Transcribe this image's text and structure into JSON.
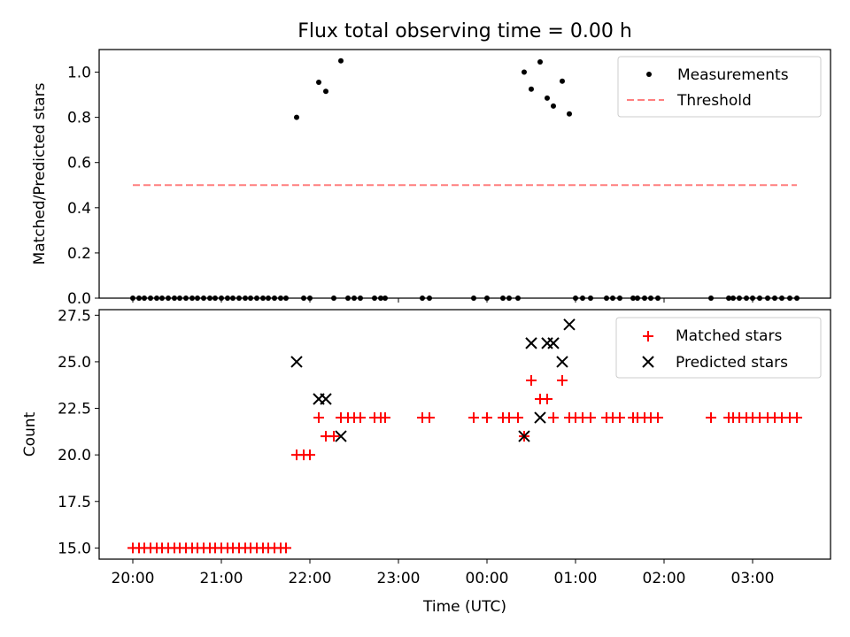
{
  "figure": {
    "title": "Flux total observing time = 0.00 h"
  },
  "colors": {
    "measurements": "#000000",
    "threshold": "#ff7f7f",
    "matched": "#ff0000",
    "predicted": "#000000"
  },
  "chart_data": [
    {
      "type": "scatter",
      "ylabel": "Matched/Predicted stars",
      "xlabel": "",
      "xlim": [
        -0.38,
        7.88
      ],
      "ylim": [
        0.0,
        1.1
      ],
      "yticks": [
        "0.0",
        "0.2",
        "0.4",
        "0.6",
        "0.8",
        "1.0"
      ],
      "yticks_values": [
        0.0,
        0.2,
        0.4,
        0.6,
        0.8,
        1.0
      ],
      "grid": false,
      "legend_position": "top-right",
      "series": [
        {
          "name": "Measurements",
          "kind": "points",
          "points": [
            [
              0.0,
              0
            ],
            [
              0.07,
              0
            ],
            [
              0.13,
              0
            ],
            [
              0.2,
              0
            ],
            [
              0.27,
              0
            ],
            [
              0.33,
              0
            ],
            [
              0.4,
              0
            ],
            [
              0.47,
              0
            ],
            [
              0.53,
              0
            ],
            [
              0.6,
              0
            ],
            [
              0.67,
              0
            ],
            [
              0.73,
              0
            ],
            [
              0.8,
              0
            ],
            [
              0.87,
              0
            ],
            [
              0.93,
              0
            ],
            [
              1.0,
              0
            ],
            [
              1.07,
              0
            ],
            [
              1.13,
              0
            ],
            [
              1.2,
              0
            ],
            [
              1.27,
              0
            ],
            [
              1.33,
              0
            ],
            [
              1.4,
              0
            ],
            [
              1.47,
              0
            ],
            [
              1.53,
              0
            ],
            [
              1.6,
              0
            ],
            [
              1.67,
              0
            ],
            [
              1.73,
              0
            ],
            [
              1.85,
              0.8
            ],
            [
              1.93,
              0
            ],
            [
              2.0,
              0
            ],
            [
              2.1,
              0.955
            ],
            [
              2.18,
              0.915
            ],
            [
              2.27,
              0
            ],
            [
              2.35,
              1.05
            ],
            [
              2.43,
              0
            ],
            [
              2.5,
              0
            ],
            [
              2.57,
              0
            ],
            [
              2.73,
              0
            ],
            [
              2.8,
              0
            ],
            [
              2.85,
              0
            ],
            [
              3.27,
              0
            ],
            [
              3.35,
              0
            ],
            [
              3.85,
              0
            ],
            [
              4.0,
              0
            ],
            [
              4.18,
              0
            ],
            [
              4.25,
              0
            ],
            [
              4.35,
              0
            ],
            [
              4.42,
              1.0
            ],
            [
              4.5,
              0.925
            ],
            [
              4.6,
              1.045
            ],
            [
              4.68,
              0.885
            ],
            [
              4.75,
              0.85
            ],
            [
              4.85,
              0.96
            ],
            [
              4.93,
              0.815
            ],
            [
              5.0,
              0
            ],
            [
              5.08,
              0
            ],
            [
              5.17,
              0
            ],
            [
              5.35,
              0
            ],
            [
              5.42,
              0
            ],
            [
              5.5,
              0
            ],
            [
              5.65,
              0
            ],
            [
              5.7,
              0
            ],
            [
              5.78,
              0
            ],
            [
              5.85,
              0
            ],
            [
              5.93,
              0
            ],
            [
              6.53,
              0
            ],
            [
              6.73,
              0
            ],
            [
              6.78,
              0
            ],
            [
              6.85,
              0
            ],
            [
              6.93,
              0
            ],
            [
              7.0,
              0
            ],
            [
              7.08,
              0
            ],
            [
              7.17,
              0
            ],
            [
              7.25,
              0
            ],
            [
              7.33,
              0
            ],
            [
              7.42,
              0
            ],
            [
              7.5,
              0
            ]
          ]
        },
        {
          "name": "Threshold",
          "kind": "line",
          "points": [
            [
              0.0,
              0.5
            ],
            [
              7.5,
              0.5
            ]
          ]
        }
      ]
    },
    {
      "type": "scatter",
      "ylabel": "Count",
      "xlabel": "Time (UTC)",
      "xlim": [
        -0.38,
        7.88
      ],
      "ylim": [
        14.4,
        27.8
      ],
      "yticks": [
        "15.0",
        "17.5",
        "20.0",
        "22.5",
        "25.0",
        "27.5"
      ],
      "yticks_values": [
        15.0,
        17.5,
        20.0,
        22.5,
        25.0,
        27.5
      ],
      "xticks": [
        "20:00",
        "21:00",
        "22:00",
        "23:00",
        "00:00",
        "01:00",
        "02:00",
        "03:00"
      ],
      "xticks_values": [
        0,
        1,
        2,
        3,
        4,
        5,
        6,
        7
      ],
      "grid": false,
      "legend_position": "top-right",
      "series": [
        {
          "name": "Matched stars",
          "marker": "plus",
          "points": [
            [
              0.0,
              15
            ],
            [
              0.07,
              15
            ],
            [
              0.13,
              15
            ],
            [
              0.2,
              15
            ],
            [
              0.27,
              15
            ],
            [
              0.33,
              15
            ],
            [
              0.4,
              15
            ],
            [
              0.47,
              15
            ],
            [
              0.53,
              15
            ],
            [
              0.6,
              15
            ],
            [
              0.67,
              15
            ],
            [
              0.73,
              15
            ],
            [
              0.8,
              15
            ],
            [
              0.87,
              15
            ],
            [
              0.93,
              15
            ],
            [
              1.0,
              15
            ],
            [
              1.07,
              15
            ],
            [
              1.13,
              15
            ],
            [
              1.2,
              15
            ],
            [
              1.27,
              15
            ],
            [
              1.33,
              15
            ],
            [
              1.4,
              15
            ],
            [
              1.47,
              15
            ],
            [
              1.53,
              15
            ],
            [
              1.6,
              15
            ],
            [
              1.67,
              15
            ],
            [
              1.73,
              15
            ],
            [
              1.85,
              20
            ],
            [
              1.93,
              20
            ],
            [
              2.0,
              20
            ],
            [
              2.1,
              22
            ],
            [
              2.18,
              21
            ],
            [
              2.27,
              21
            ],
            [
              2.35,
              22
            ],
            [
              2.43,
              22
            ],
            [
              2.5,
              22
            ],
            [
              2.57,
              22
            ],
            [
              2.73,
              22
            ],
            [
              2.8,
              22
            ],
            [
              2.85,
              22
            ],
            [
              3.27,
              22
            ],
            [
              3.35,
              22
            ],
            [
              3.85,
              22
            ],
            [
              4.0,
              22
            ],
            [
              4.18,
              22
            ],
            [
              4.25,
              22
            ],
            [
              4.35,
              22
            ],
            [
              4.42,
              21
            ],
            [
              4.5,
              24
            ],
            [
              4.6,
              23
            ],
            [
              4.68,
              23
            ],
            [
              4.75,
              22
            ],
            [
              4.85,
              24
            ],
            [
              4.93,
              22
            ],
            [
              5.0,
              22
            ],
            [
              5.08,
              22
            ],
            [
              5.17,
              22
            ],
            [
              5.35,
              22
            ],
            [
              5.42,
              22
            ],
            [
              5.5,
              22
            ],
            [
              5.65,
              22
            ],
            [
              5.7,
              22
            ],
            [
              5.78,
              22
            ],
            [
              5.85,
              22
            ],
            [
              5.93,
              22
            ],
            [
              6.53,
              22
            ],
            [
              6.73,
              22
            ],
            [
              6.78,
              22
            ],
            [
              6.85,
              22
            ],
            [
              6.93,
              22
            ],
            [
              7.0,
              22
            ],
            [
              7.08,
              22
            ],
            [
              7.17,
              22
            ],
            [
              7.25,
              22
            ],
            [
              7.33,
              22
            ],
            [
              7.42,
              22
            ],
            [
              7.5,
              22
            ]
          ]
        },
        {
          "name": "Predicted stars",
          "marker": "x",
          "points": [
            [
              1.85,
              25
            ],
            [
              2.1,
              23
            ],
            [
              2.18,
              23
            ],
            [
              2.35,
              21
            ],
            [
              4.42,
              21
            ],
            [
              4.5,
              26
            ],
            [
              4.6,
              22
            ],
            [
              4.68,
              26
            ],
            [
              4.75,
              26
            ],
            [
              4.85,
              25
            ],
            [
              4.93,
              27
            ]
          ]
        }
      ]
    }
  ]
}
